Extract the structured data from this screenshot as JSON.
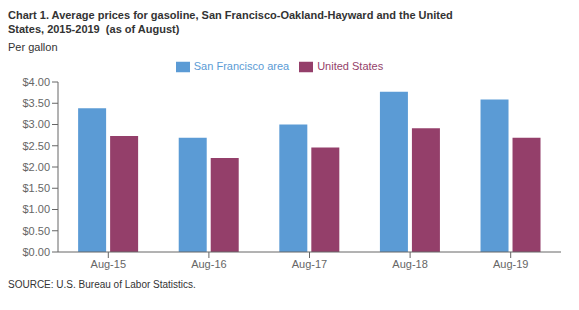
{
  "chart_data": {
    "type": "bar",
    "title": "Chart 1. Average prices for gasoline, San Francisco-Oakland-Hayward and the United\nStates, 2015-2019  (as of August)",
    "y_label": "Per gallon",
    "source": "SOURCE: U.S. Bureau of Labor Statistics.",
    "categories": [
      "Aug-15",
      "Aug-16",
      "Aug-17",
      "Aug-18",
      "Aug-19"
    ],
    "series": [
      {
        "name": "San Francisco area",
        "color": "#5B9BD5",
        "values": [
          3.38,
          2.69,
          3.0,
          3.77,
          3.59
        ]
      },
      {
        "name": "United States",
        "color": "#943F6A",
        "values": [
          2.73,
          2.21,
          2.46,
          2.91,
          2.69
        ]
      }
    ],
    "ylim": [
      0,
      4.0
    ],
    "yticks": [
      {
        "value": 0.0,
        "label": "$0.00"
      },
      {
        "value": 0.5,
        "label": "$0.50"
      },
      {
        "value": 1.0,
        "label": "$1.00"
      },
      {
        "value": 1.5,
        "label": "$1.50"
      },
      {
        "value": 2.0,
        "label": "$2.00"
      },
      {
        "value": 2.5,
        "label": "$2.50"
      },
      {
        "value": 3.0,
        "label": "$3.00"
      },
      {
        "value": 3.5,
        "label": "$3.50"
      },
      {
        "value": 4.0,
        "label": "$4.00"
      }
    ],
    "grid": false,
    "legend": "top"
  }
}
